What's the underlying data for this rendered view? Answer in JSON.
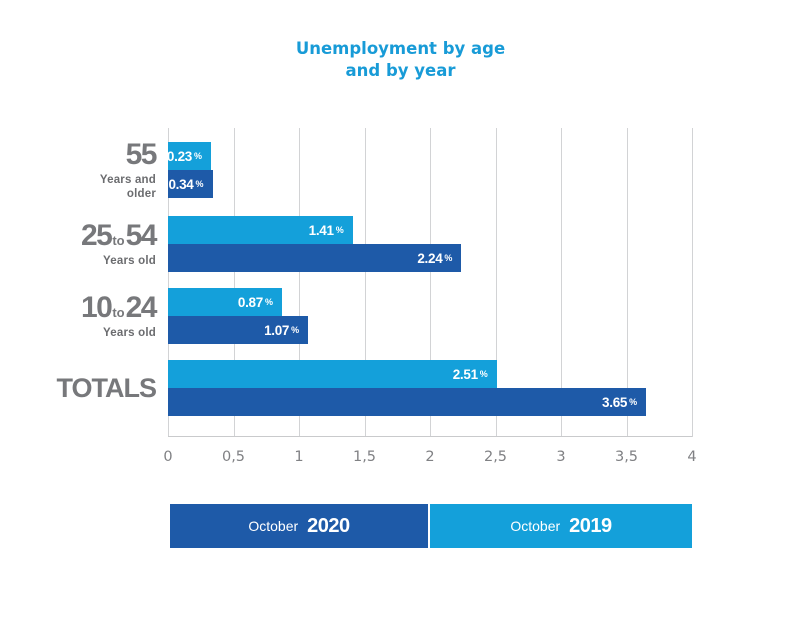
{
  "title": {
    "line1": "Unemployment by age",
    "line2": "and by year",
    "color": "#189bd7"
  },
  "colors": {
    "light_blue_2019": "#14a0da",
    "dark_blue_2020": "#1e5aa8",
    "title_blue": "#189bd7",
    "category_gray": "#77787b",
    "tick_gray": "#808184",
    "grid_gray": "#d2d3d5"
  },
  "chart_data": {
    "type": "bar",
    "orientation": "horizontal",
    "title": "Unemployment by age and by year",
    "xlabel": "",
    "ylabel": "",
    "xlim": [
      0,
      4
    ],
    "x_ticks": [
      "0",
      "0,5",
      "1",
      "1,5",
      "2",
      "2,5",
      "3",
      "3,5",
      "4"
    ],
    "grid": "vertical",
    "unit": "%",
    "categories": [
      "55 Years and older",
      "25 to 54 Years old",
      "10 to 24 Years old",
      "TOTALS"
    ],
    "series": [
      {
        "name": "October 2019",
        "color": "#14a0da",
        "values": [
          0.23,
          1.41,
          0.87,
          2.51
        ]
      },
      {
        "name": "October 2020",
        "color": "#1e5aa8",
        "values": [
          0.34,
          2.24,
          1.07,
          3.65
        ]
      }
    ],
    "groups": [
      {
        "label": {
          "num1": "55",
          "connector": "",
          "num2": "",
          "sub1": "Years and",
          "sub2": "older"
        },
        "light": {
          "value": 0.23,
          "label": "0.23",
          "unit": "%"
        },
        "dark": {
          "value": 0.34,
          "label": "0.34",
          "unit": "%"
        }
      },
      {
        "label": {
          "num1": "25",
          "connector": "to",
          "num2": "54",
          "sub1": "Years old",
          "sub2": ""
        },
        "light": {
          "value": 1.41,
          "label": "1.41",
          "unit": "%"
        },
        "dark": {
          "value": 2.24,
          "label": "2.24",
          "unit": "%"
        }
      },
      {
        "label": {
          "num1": "10",
          "connector": "to",
          "num2": "24",
          "sub1": "Years old",
          "sub2": ""
        },
        "light": {
          "value": 0.87,
          "label": "0.87",
          "unit": "%"
        },
        "dark": {
          "value": 1.07,
          "label": "1.07",
          "unit": "%"
        }
      },
      {
        "label": {
          "num1": "TOTALS",
          "connector": "",
          "num2": "",
          "sub1": "",
          "sub2": ""
        },
        "light": {
          "value": 2.51,
          "label": "2.51",
          "unit": "%"
        },
        "dark": {
          "value": 3.65,
          "label": "3.65",
          "unit": "%"
        }
      }
    ],
    "legend_position": "bottom"
  },
  "legend": {
    "items": [
      {
        "prefix": "October",
        "year": "2020",
        "color": "#1e5aa8"
      },
      {
        "prefix": "October",
        "year": "2019",
        "color": "#14a0da"
      }
    ]
  }
}
